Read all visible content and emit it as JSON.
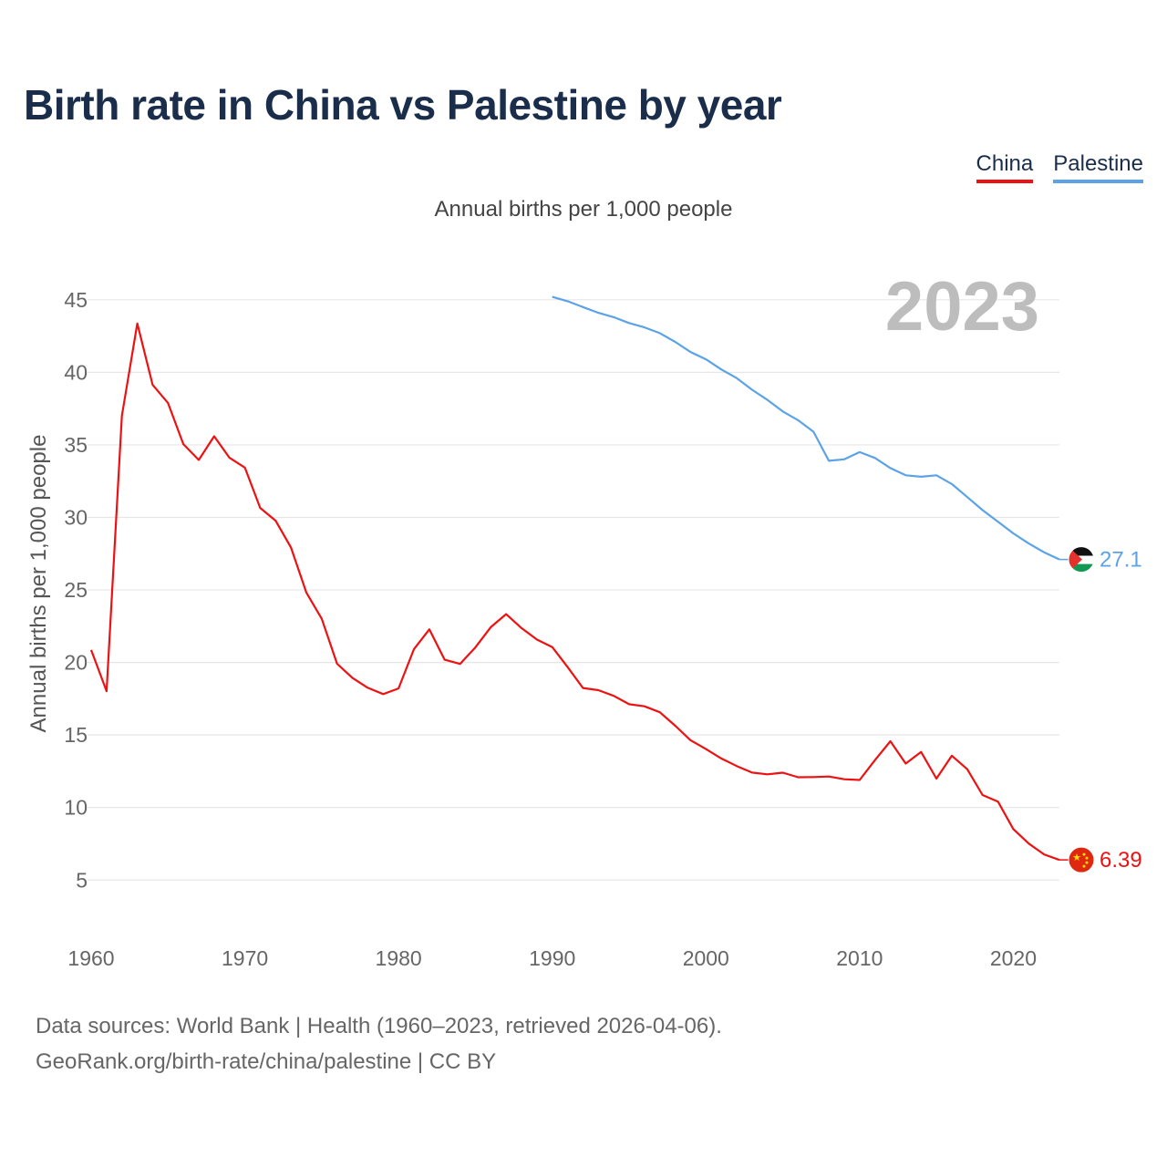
{
  "title": "Birth rate in China vs Palestine by year",
  "subtitle": "Annual births per 1,000 people",
  "legend": [
    {
      "label": "China",
      "color": "#ee1111"
    },
    {
      "label": "Palestine",
      "color": "#5ba3e6"
    }
  ],
  "year_badge": "2023",
  "source": {
    "line1": "Data sources: World Bank | Health (1960–2023, retrieved 2026-04-06).",
    "line2": "GeoRank.org/birth-rate/china/palestine | CC BY"
  },
  "chart_data": {
    "type": "line",
    "title": "Birth rate in China vs Palestine by year",
    "xlabel": "",
    "ylabel": "Annual births per 1,000 people",
    "xlim": [
      1960,
      2023
    ],
    "ylim": [
      2,
      47
    ],
    "x_ticks": [
      1960,
      1970,
      1980,
      1990,
      2000,
      2010,
      2020
    ],
    "y_ticks": [
      5,
      10,
      15,
      20,
      25,
      30,
      35,
      40,
      45
    ],
    "grid": true,
    "legend_position": "top-right",
    "series": [
      {
        "name": "China",
        "color": "#ee1111",
        "end_label": "6.39",
        "x": [
          1960,
          1961,
          1962,
          1963,
          1964,
          1965,
          1966,
          1967,
          1968,
          1969,
          1970,
          1971,
          1972,
          1973,
          1974,
          1975,
          1976,
          1977,
          1978,
          1979,
          1980,
          1981,
          1982,
          1983,
          1984,
          1985,
          1986,
          1987,
          1988,
          1989,
          1990,
          1991,
          1992,
          1993,
          1994,
          1995,
          1996,
          1997,
          1998,
          1999,
          2000,
          2001,
          2002,
          2003,
          2004,
          2005,
          2006,
          2007,
          2008,
          2009,
          2010,
          2011,
          2012,
          2013,
          2014,
          2015,
          2016,
          2017,
          2018,
          2019,
          2020,
          2021,
          2022,
          2023
        ],
        "values": [
          20.86,
          18.02,
          37.01,
          43.37,
          39.14,
          37.88,
          35.05,
          33.96,
          35.59,
          34.11,
          33.43,
          30.65,
          29.77,
          27.93,
          24.82,
          23.01,
          19.91,
          18.93,
          18.25,
          17.82,
          18.21,
          20.91,
          22.28,
          20.19,
          19.9,
          21.04,
          22.43,
          23.33,
          22.37,
          21.58,
          21.06,
          19.68,
          18.24,
          18.09,
          17.7,
          17.12,
          16.98,
          16.57,
          15.64,
          14.64,
          14.03,
          13.38,
          12.86,
          12.41,
          12.29,
          12.4,
          12.09,
          12.1,
          12.14,
          11.95,
          11.9,
          13.27,
          14.57,
          13.03,
          13.83,
          11.99,
          13.57,
          12.64,
          10.86,
          10.41,
          8.52,
          7.52,
          6.77,
          6.39
        ]
      },
      {
        "name": "Palestine",
        "color": "#5ba3e6",
        "end_label": "27.1",
        "x": [
          1990,
          1991,
          1992,
          1993,
          1994,
          1995,
          1996,
          1997,
          1998,
          1999,
          2000,
          2001,
          2002,
          2003,
          2004,
          2005,
          2006,
          2007,
          2008,
          2009,
          2010,
          2011,
          2012,
          2013,
          2014,
          2015,
          2016,
          2017,
          2018,
          2019,
          2020,
          2021,
          2022,
          2023
        ],
        "values": [
          45.2,
          44.9,
          44.5,
          44.1,
          43.8,
          43.4,
          43.1,
          42.7,
          42.1,
          41.4,
          40.9,
          40.2,
          39.6,
          38.8,
          38.1,
          37.3,
          36.7,
          35.9,
          33.9,
          34.0,
          34.5,
          34.1,
          33.4,
          32.9,
          32.8,
          32.9,
          32.3,
          31.4,
          30.5,
          29.7,
          28.9,
          28.2,
          27.6,
          27.1
        ]
      }
    ]
  }
}
